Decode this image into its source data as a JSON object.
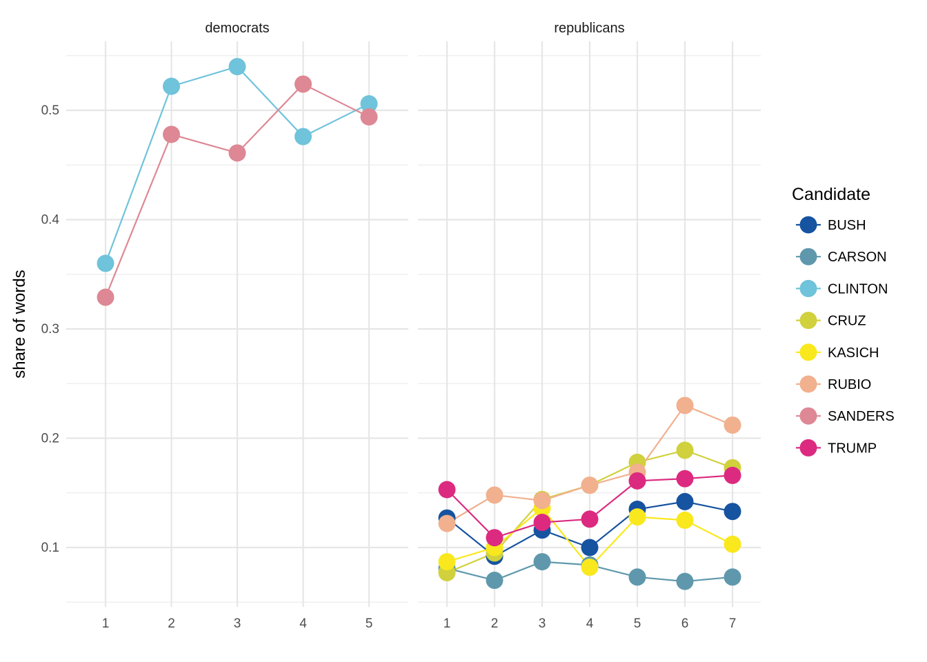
{
  "chart_data": {
    "type": "line",
    "ylabel": "share of words",
    "ylim": [
      0.05,
      0.56
    ],
    "y_ticks": [
      0.1,
      0.2,
      0.3,
      0.4,
      0.5
    ],
    "y_tick_labels": [
      "0.1",
      "0.2",
      "0.3",
      "0.4",
      "0.5"
    ],
    "grid": true,
    "legend": {
      "title": "Candidate",
      "position": "right",
      "entries": [
        {
          "name": "BUSH",
          "color": "#1653a0"
        },
        {
          "name": "CARSON",
          "color": "#5f98ad"
        },
        {
          "name": "CLINTON",
          "color": "#6fc3da"
        },
        {
          "name": "CRUZ",
          "color": "#d0d13c"
        },
        {
          "name": "KASICH",
          "color": "#f9e81d"
        },
        {
          "name": "RUBIO",
          "color": "#f1b08e"
        },
        {
          "name": "SANDERS",
          "color": "#dd8894"
        },
        {
          "name": "TRUMP",
          "color": "#dc2a80"
        }
      ]
    },
    "panels": [
      {
        "title": "democrats",
        "x": [
          1,
          2,
          3,
          4,
          5
        ],
        "x_tick_labels": [
          "1",
          "2",
          "3",
          "4",
          "5"
        ],
        "series": [
          {
            "name": "CLINTON",
            "values": [
              0.36,
              0.522,
              0.54,
              0.476,
              0.506
            ]
          },
          {
            "name": "SANDERS",
            "values": [
              0.329,
              0.478,
              0.461,
              0.524,
              0.494
            ]
          }
        ]
      },
      {
        "title": "republicans",
        "x": [
          1,
          2,
          3,
          4,
          5,
          6,
          7
        ],
        "x_tick_labels": [
          "1",
          "2",
          "3",
          "4",
          "5",
          "6",
          "7"
        ],
        "series": [
          {
            "name": "BUSH",
            "values": [
              0.127,
              0.092,
              0.116,
              0.1,
              0.135,
              0.142,
              0.133
            ]
          },
          {
            "name": "CARSON",
            "values": [
              0.081,
              0.07,
              0.087,
              0.084,
              0.073,
              0.069,
              0.073
            ]
          },
          {
            "name": "CRUZ",
            "values": [
              0.077,
              0.095,
              0.144,
              0.157,
              0.178,
              0.189,
              0.173
            ]
          },
          {
            "name": "KASICH",
            "values": [
              0.087,
              0.1,
              0.136,
              0.082,
              0.128,
              0.125,
              0.103
            ]
          },
          {
            "name": "RUBIO",
            "values": [
              0.122,
              0.148,
              0.143,
              0.157,
              0.169,
              0.23,
              0.212
            ]
          },
          {
            "name": "TRUMP",
            "values": [
              0.153,
              0.109,
              0.123,
              0.126,
              0.161,
              0.163,
              0.166
            ]
          }
        ]
      }
    ]
  }
}
